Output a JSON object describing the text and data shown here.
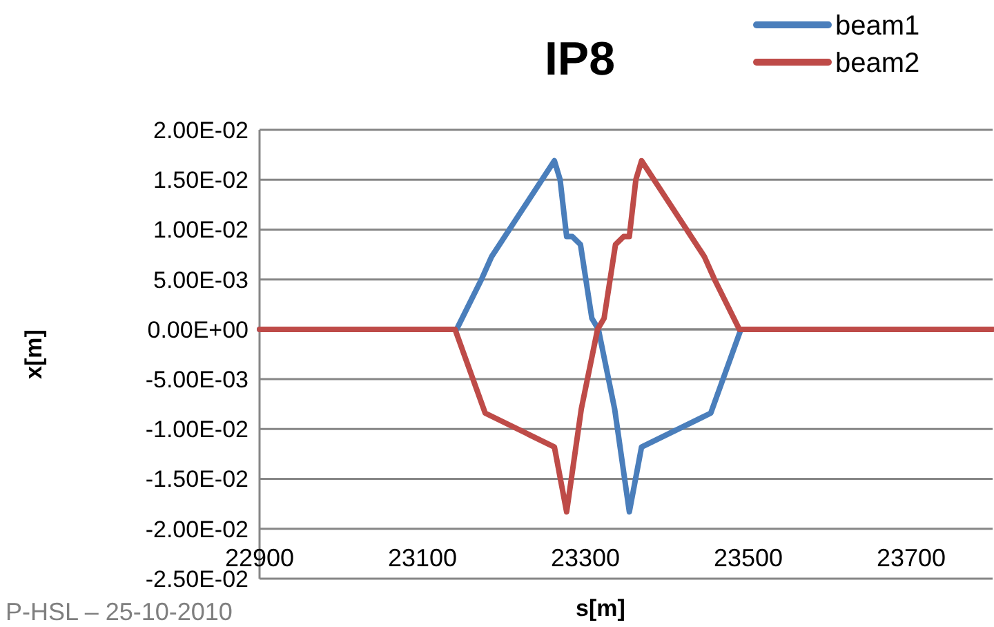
{
  "chart_data": {
    "type": "line",
    "title": "IP8",
    "xlabel": "s[m]",
    "ylabel": "x[m]",
    "annotations": [
      "P-HSL – 25-10-2010"
    ],
    "xlim": [
      22900,
      23800
    ],
    "xticks": [
      22900,
      23100,
      23300,
      23500,
      23700
    ],
    "ylim": [
      -0.025,
      0.02
    ],
    "yticks": [
      {
        "value": -0.025,
        "label": "-2.50E-02"
      },
      {
        "value": -0.02,
        "label": "-2.00E-02"
      },
      {
        "value": -0.015,
        "label": "-1.50E-02"
      },
      {
        "value": -0.01,
        "label": "-1.00E-02"
      },
      {
        "value": -0.005,
        "label": "-5.00E-03"
      },
      {
        "value": 0,
        "label": "0.00E+00"
      },
      {
        "value": 0.005,
        "label": "5.00E-03"
      },
      {
        "value": 0.01,
        "label": "1.00E-02"
      },
      {
        "value": 0.015,
        "label": "1.50E-02"
      },
      {
        "value": 0.02,
        "label": "2.00E-02"
      }
    ],
    "grid": "y",
    "legend": "top right",
    "marker": "none",
    "line_style": "solid",
    "series": [
      {
        "name": "beam1",
        "color": "#4a7ebb",
        "x": [
          22900,
          23142,
          23173,
          23185,
          23262,
          23269,
          23277,
          23284,
          23294,
          23308,
          23316,
          23336,
          23354,
          23360,
          23369,
          23454,
          23491,
          23800
        ],
        "values": [
          0,
          0,
          0.0051,
          0.0073,
          0.0169,
          0.015,
          0.0093,
          0.0093,
          0.0085,
          0.0011,
          0,
          -0.008,
          -0.0183,
          -0.0157,
          -0.0118,
          -0.0084,
          0,
          0
        ]
      },
      {
        "name": "beam2",
        "color": "#be4b48",
        "x": [
          22900,
          23140,
          23177,
          23262,
          23271,
          23277,
          23295,
          23315,
          23323,
          23337,
          23347,
          23354,
          23362,
          23369,
          23446,
          23458,
          23489,
          23800
        ],
        "values": [
          0,
          0,
          -0.0084,
          -0.0118,
          -0.0157,
          -0.0183,
          -0.008,
          0,
          0.0011,
          0.0085,
          0.0093,
          0.0093,
          0.015,
          0.0169,
          0.0073,
          0.0051,
          0,
          0
        ]
      }
    ]
  }
}
